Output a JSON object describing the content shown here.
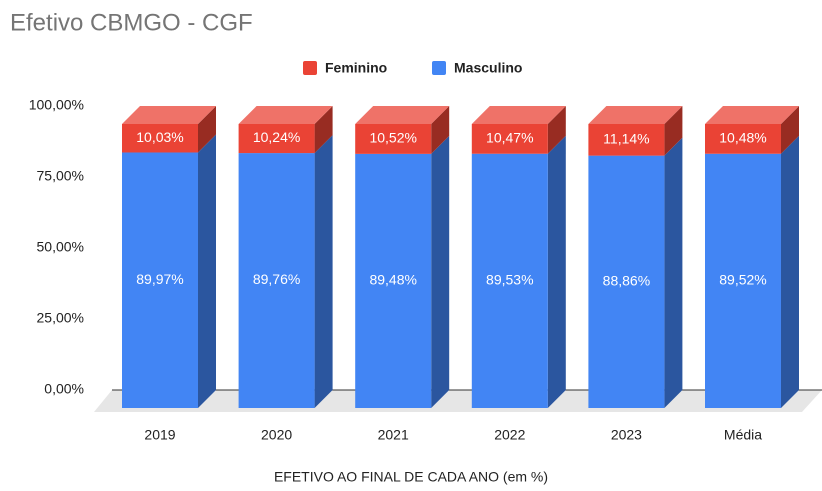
{
  "chart_data": {
    "type": "bar3d_stacked",
    "title": "Efetivo CBMGO - CGF",
    "xlabel": "EFETIVO AO FINAL DE CADA ANO (em %)",
    "categories": [
      "2019",
      "2020",
      "2021",
      "2022",
      "2023",
      "Média"
    ],
    "series": [
      {
        "name": "Feminino",
        "color": "#ea4335",
        "values": [
          10.03,
          10.24,
          10.52,
          10.47,
          11.14,
          10.48
        ],
        "value_labels": [
          "10,03%",
          "10,24%",
          "10,52%",
          "10,47%",
          "11,14%",
          "10,48%"
        ]
      },
      {
        "name": "Masculino",
        "color": "#4285f4",
        "values": [
          89.97,
          89.76,
          89.48,
          89.53,
          88.86,
          89.52
        ],
        "value_labels": [
          "89,97%",
          "89,76%",
          "89,48%",
          "89,53%",
          "88,86%",
          "89,52%"
        ]
      }
    ],
    "ylim": [
      0,
      100
    ],
    "yticks": [
      {
        "value": 0,
        "label": "0,00%"
      },
      {
        "value": 25,
        "label": "25,00%"
      },
      {
        "value": 50,
        "label": "50,00%"
      },
      {
        "value": 75,
        "label": "75,00%"
      },
      {
        "value": 100,
        "label": "100,00%"
      }
    ],
    "legend": "top"
  }
}
